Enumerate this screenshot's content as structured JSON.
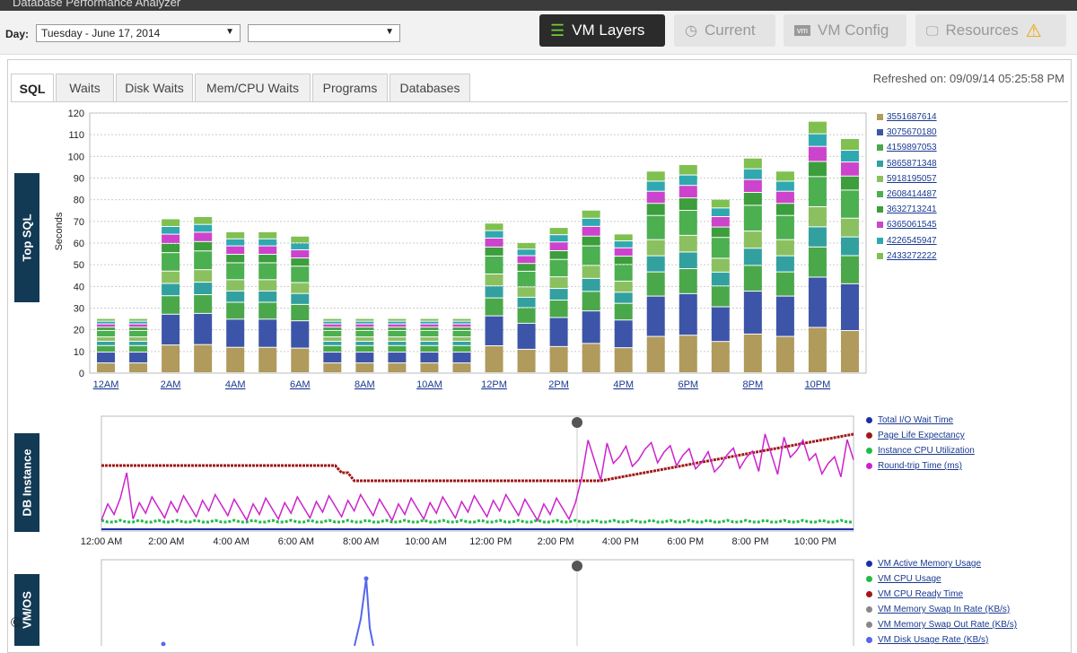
{
  "app": {
    "title": "Database Performance Analyzer"
  },
  "toolbar": {
    "day_label": "Day:",
    "day_value": "Tuesday - June 17, 2014",
    "second_value": "",
    "buttons": [
      {
        "label": "VM Layers",
        "icon": "list-icon"
      },
      {
        "label": "Current",
        "icon": "clock-icon"
      },
      {
        "label": "VM Config",
        "icon": "vm-icon"
      },
      {
        "label": "Resources",
        "icon": "monitor-icon"
      }
    ],
    "warning_icon": "warning-icon"
  },
  "tabs": [
    "SQL",
    "Waits",
    "Disk Waits",
    "Mem/CPU Waits",
    "Programs",
    "Databases"
  ],
  "refreshed": "Refreshed on: 09/09/14 05:25:58 PM",
  "side_labels": {
    "top_sql": "Top SQL",
    "db_instance": "DB Instance",
    "vm_os": "VM/OS"
  },
  "copyright_symbol": "©",
  "colors": {
    "dark_nav": "#2b2b2b",
    "side_label_bg": "#123a55",
    "series": [
      "#b09a5c",
      "#3d55a8",
      "#4aa84a",
      "#33a0a0",
      "#8bc060",
      "#4caf50",
      "#3c9e3c",
      "#cc44cc",
      "#30a8b0",
      "#80c050"
    ]
  },
  "chart_data": [
    {
      "type": "bar",
      "stacked": true,
      "ylabel": "Seconds",
      "ylim": [
        0,
        120
      ],
      "yticks": [
        0,
        10,
        20,
        30,
        40,
        50,
        60,
        70,
        80,
        90,
        100,
        110,
        120
      ],
      "categories": [
        "12AM",
        "1AM",
        "2AM",
        "3AM",
        "4AM",
        "5AM",
        "6AM",
        "7AM",
        "8AM",
        "9AM",
        "10AM",
        "11AM",
        "12PM",
        "1PM",
        "2PM",
        "3PM",
        "4PM",
        "5PM",
        "6PM",
        "7PM",
        "8PM",
        "9PM",
        "10PM",
        "11PM"
      ],
      "xtick_labels": [
        "12AM",
        "2AM",
        "4AM",
        "6AM",
        "8AM",
        "10AM",
        "12PM",
        "2PM",
        "4PM",
        "6PM",
        "8PM",
        "10PM"
      ],
      "totals": [
        25,
        25,
        71,
        72,
        65,
        65,
        63,
        25,
        25,
        25,
        25,
        25,
        69,
        60,
        67,
        75,
        64,
        93,
        96,
        80,
        99,
        93,
        116,
        108
      ],
      "series": [
        {
          "name": "3551687614"
        },
        {
          "name": "3075670180"
        },
        {
          "name": "4159897053"
        },
        {
          "name": "5865871348"
        },
        {
          "name": "5918195057"
        },
        {
          "name": "2608414487"
        },
        {
          "name": "3632713241"
        },
        {
          "name": "6365061545"
        },
        {
          "name": "4226545947"
        },
        {
          "name": "2433272222"
        }
      ],
      "legend_position": "right"
    },
    {
      "type": "line",
      "x_tick_labels": [
        "12:00 AM",
        "2:00 AM",
        "4:00 AM",
        "6:00 AM",
        "8:00 AM",
        "10:00 AM",
        "12:00 PM",
        "2:00 PM",
        "4:00 PM",
        "6:00 PM",
        "8:00 PM",
        "10:00 PM"
      ],
      "series": [
        {
          "name": "Total I/O Wait Time",
          "color": "#1a2ea8"
        },
        {
          "name": "Page Life Expectancy",
          "color": "#a01818"
        },
        {
          "name": "Instance CPU Utilization",
          "color": "#22bb44"
        },
        {
          "name": "Round-trip Time (ms)",
          "color": "#cc22cc"
        }
      ],
      "legend_position": "right"
    },
    {
      "type": "line",
      "series": [
        {
          "name": "VM Active Memory Usage",
          "color": "#1a2ea8"
        },
        {
          "name": "VM CPU Usage",
          "color": "#22bb44"
        },
        {
          "name": "VM CPU Ready Time",
          "color": "#a01818"
        },
        {
          "name": "VM Memory Swap In Rate (KB/s)",
          "color": "#888888"
        },
        {
          "name": "VM Memory Swap Out Rate (KB/s)",
          "color": "#888888"
        },
        {
          "name": "VM Disk Usage Rate (KB/s)",
          "color": "#5566ee"
        }
      ],
      "legend_position": "right"
    }
  ]
}
